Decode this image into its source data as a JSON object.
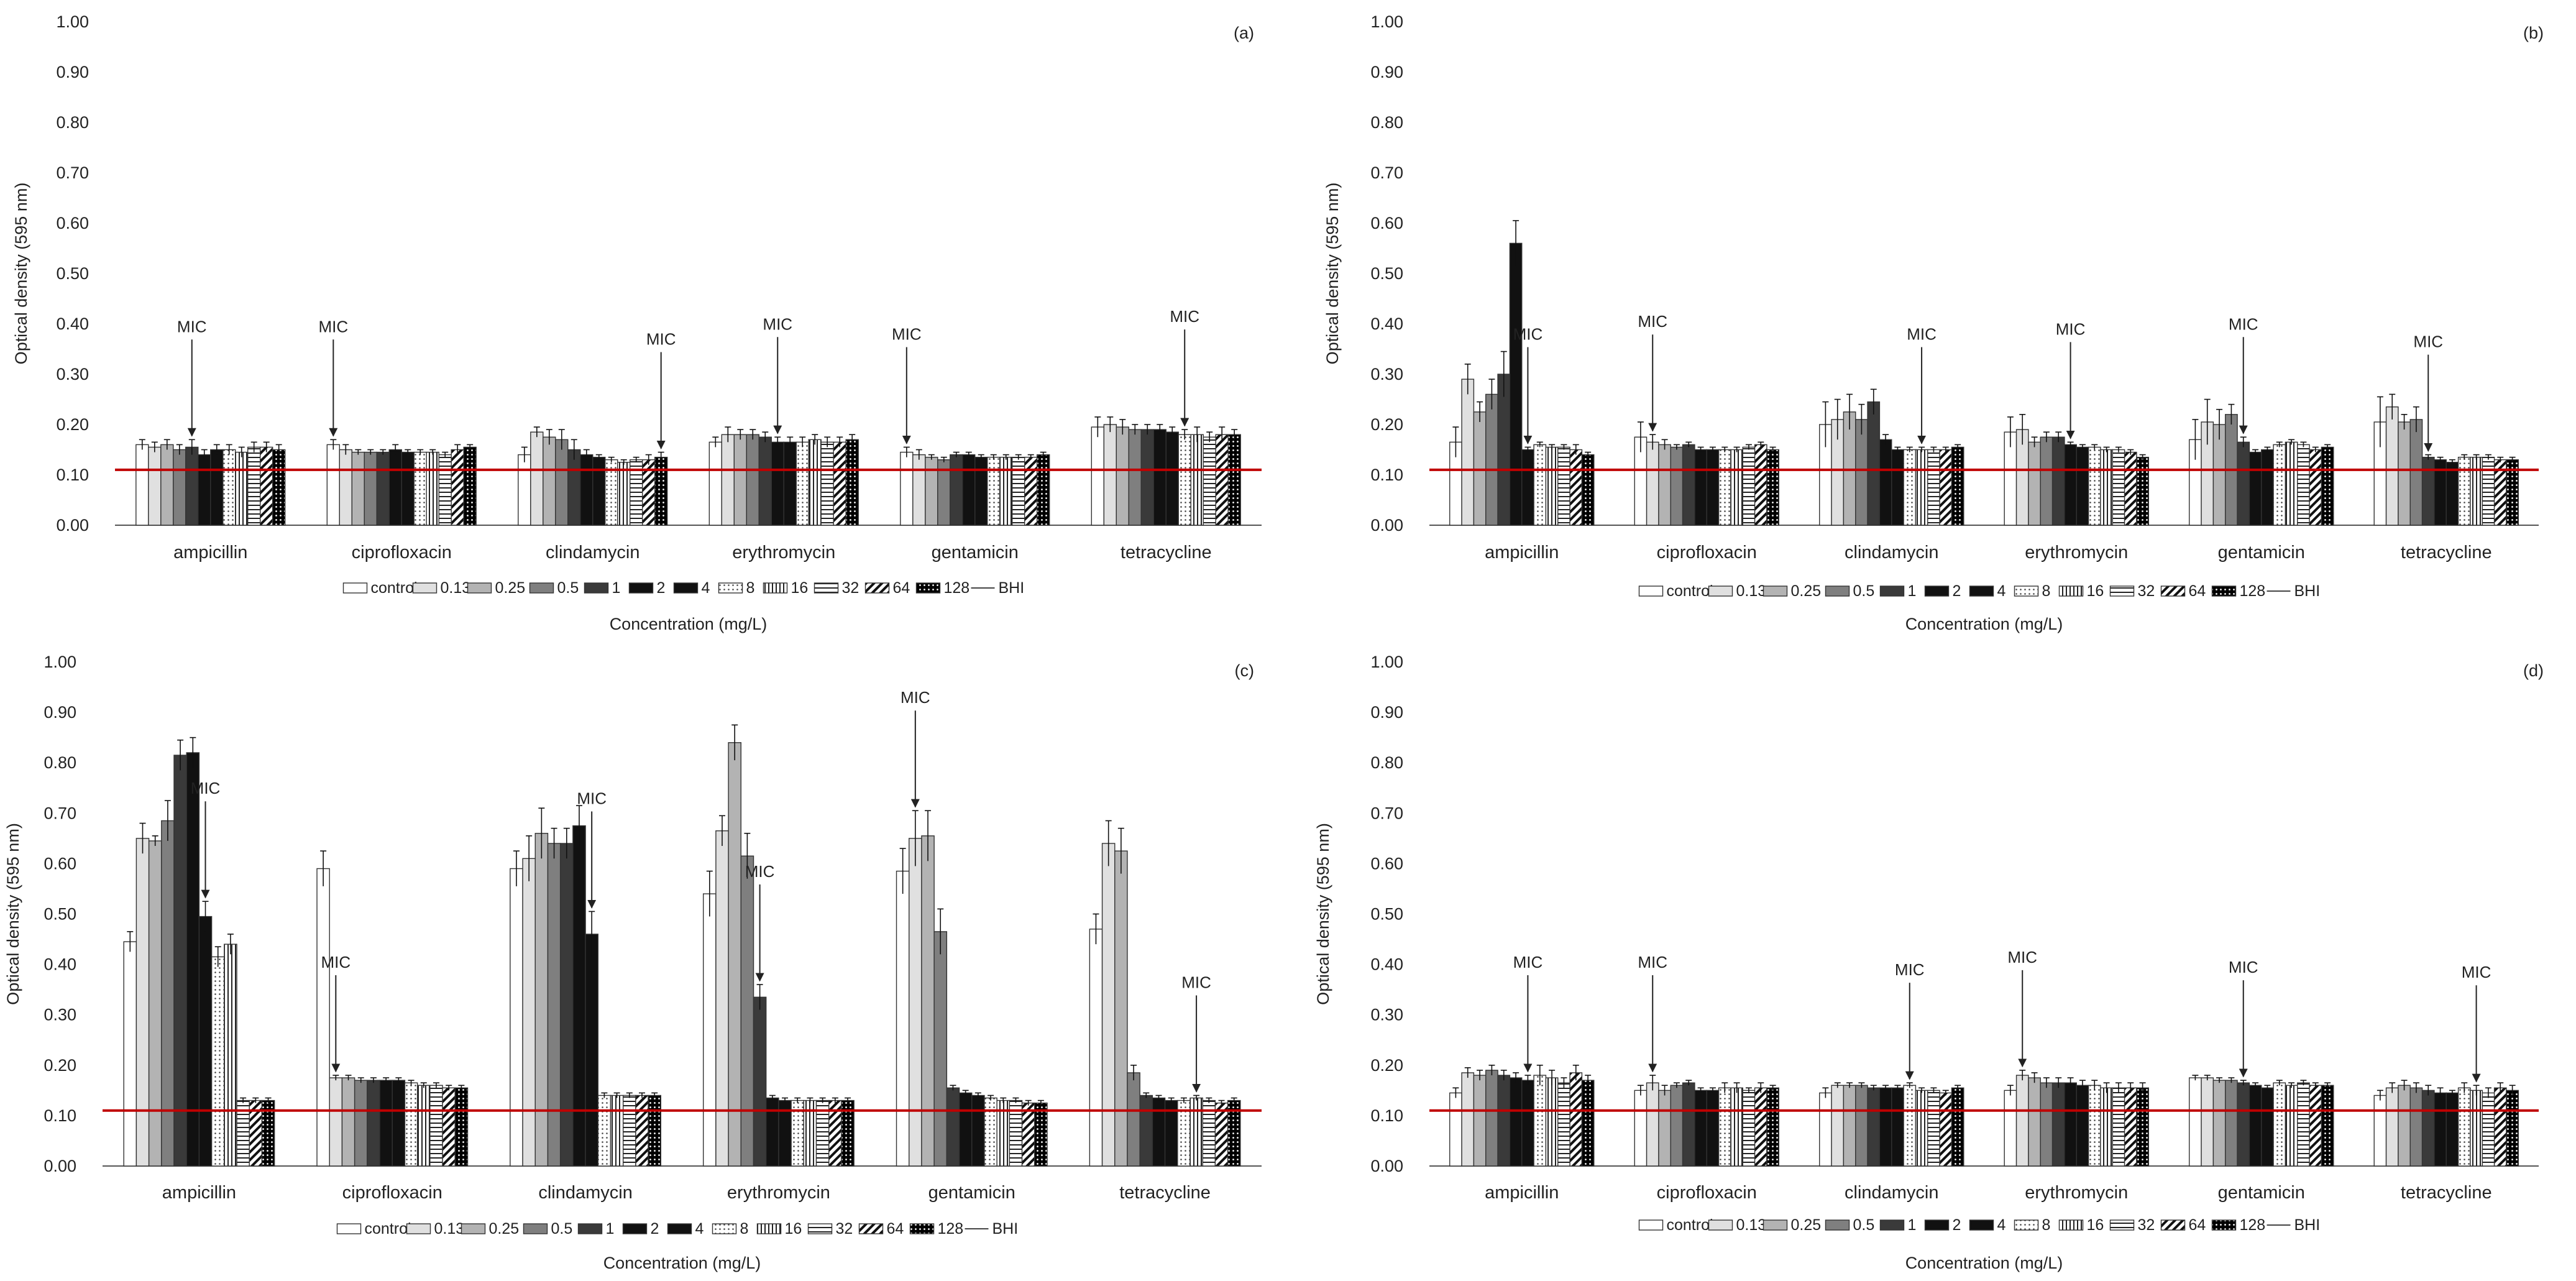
{
  "figure": {
    "ylabel": "Optical density (595 nm)",
    "xlabel": "Concentration (mg/L)",
    "mic_label": "MIC"
  },
  "legend": [
    {
      "label": "control",
      "pattern": "white"
    },
    {
      "label": "0.13",
      "pattern": "lightgray"
    },
    {
      "label": "0.25",
      "pattern": "midgray"
    },
    {
      "label": "0.5",
      "pattern": "gray"
    },
    {
      "label": "1",
      "pattern": "darkgray"
    },
    {
      "label": "2",
      "pattern": "black"
    },
    {
      "label": "4",
      "pattern": "black"
    },
    {
      "label": "8",
      "pattern": "dots"
    },
    {
      "label": "16",
      "pattern": "vlines"
    },
    {
      "label": "32",
      "pattern": "hlines"
    },
    {
      "label": "64",
      "pattern": "diag"
    },
    {
      "label": "128",
      "pattern": "blackdots"
    },
    {
      "label": "BHI",
      "pattern": "line"
    }
  ],
  "colors": {
    "bhi_line": "#c00000",
    "bar_edge": "#333333",
    "axis": "#555555"
  },
  "chart_data": [
    {
      "type": "bar",
      "panel": "(a)",
      "categories": [
        "ampicillin",
        "ciprofloxacin",
        "clindamycin",
        "erythromycin",
        "gentamicin",
        "tetracycline"
      ],
      "ylim": [
        0,
        1
      ],
      "yticks": [
        "0.00",
        "0.10",
        "0.20",
        "0.30",
        "0.40",
        "0.50",
        "0.60",
        "0.70",
        "0.80",
        "0.90",
        "1.00"
      ],
      "bhi": 0.11,
      "series_labels": [
        "control",
        "0.13",
        "0.25",
        "0.5",
        "1",
        "2",
        "4",
        "8",
        "16",
        "32",
        "64",
        "128"
      ],
      "values": [
        [
          0.16,
          0.155,
          0.16,
          0.15,
          0.155,
          0.14,
          0.15,
          0.15,
          0.145,
          0.155,
          0.155,
          0.15
        ],
        [
          0.16,
          0.15,
          0.145,
          0.145,
          0.145,
          0.15,
          0.145,
          0.145,
          0.145,
          0.14,
          0.15,
          0.155
        ],
        [
          0.14,
          0.185,
          0.175,
          0.17,
          0.15,
          0.14,
          0.135,
          0.13,
          0.125,
          0.13,
          0.13,
          0.135
        ],
        [
          0.165,
          0.18,
          0.18,
          0.18,
          0.175,
          0.165,
          0.165,
          0.165,
          0.17,
          0.165,
          0.165,
          0.17
        ],
        [
          0.145,
          0.14,
          0.135,
          0.13,
          0.14,
          0.14,
          0.135,
          0.135,
          0.135,
          0.135,
          0.135,
          0.14
        ],
        [
          0.195,
          0.2,
          0.195,
          0.19,
          0.19,
          0.19,
          0.185,
          0.18,
          0.18,
          0.175,
          0.18,
          0.18
        ]
      ],
      "errors": [
        [
          0.01,
          0.01,
          0.01,
          0.01,
          0.015,
          0.01,
          0.01,
          0.01,
          0.01,
          0.01,
          0.01,
          0.01
        ],
        [
          0.01,
          0.01,
          0.005,
          0.005,
          0.005,
          0.01,
          0.005,
          0.005,
          0.005,
          0.005,
          0.01,
          0.005
        ],
        [
          0.015,
          0.01,
          0.015,
          0.02,
          0.02,
          0.01,
          0.005,
          0.005,
          0.005,
          0.005,
          0.01,
          0.01
        ],
        [
          0.01,
          0.015,
          0.01,
          0.01,
          0.01,
          0.01,
          0.01,
          0.01,
          0.01,
          0.01,
          0.01,
          0.01
        ],
        [
          0.01,
          0.01,
          0.005,
          0.005,
          0.005,
          0.005,
          0.005,
          0.005,
          0.005,
          0.005,
          0.005,
          0.005
        ],
        [
          0.02,
          0.015,
          0.015,
          0.01,
          0.01,
          0.01,
          0.01,
          0.01,
          0.015,
          0.01,
          0.015,
          0.01
        ]
      ],
      "mic": [
        4,
        0,
        11,
        5,
        0,
        7
      ]
    },
    {
      "type": "bar",
      "panel": "(b)",
      "categories": [
        "ampicillin",
        "ciprofloxacin",
        "clindamycin",
        "erythromycin",
        "gentamicin",
        "tetracycline"
      ],
      "ylim": [
        0,
        1
      ],
      "yticks": [
        "0.00",
        "0.10",
        "0.20",
        "0.30",
        "0.40",
        "0.50",
        "0.60",
        "0.70",
        "0.80",
        "0.90",
        "1.00"
      ],
      "bhi": 0.11,
      "series_labels": [
        "control",
        "0.13",
        "0.25",
        "0.5",
        "1",
        "2",
        "4",
        "8",
        "16",
        "32",
        "64",
        "128"
      ],
      "values": [
        [
          0.165,
          0.29,
          0.225,
          0.26,
          0.3,
          0.56,
          0.15,
          0.16,
          0.155,
          0.155,
          0.15,
          0.14
        ],
        [
          0.175,
          0.165,
          0.16,
          0.155,
          0.16,
          0.15,
          0.15,
          0.15,
          0.15,
          0.155,
          0.16,
          0.15
        ],
        [
          0.2,
          0.21,
          0.225,
          0.21,
          0.245,
          0.17,
          0.15,
          0.15,
          0.15,
          0.15,
          0.15,
          0.155
        ],
        [
          0.185,
          0.19,
          0.165,
          0.175,
          0.175,
          0.16,
          0.155,
          0.155,
          0.15,
          0.15,
          0.145,
          0.135
        ],
        [
          0.17,
          0.205,
          0.2,
          0.22,
          0.165,
          0.145,
          0.15,
          0.16,
          0.165,
          0.16,
          0.15,
          0.155
        ],
        [
          0.205,
          0.235,
          0.205,
          0.21,
          0.135,
          0.13,
          0.125,
          0.135,
          0.135,
          0.135,
          0.13,
          0.13
        ]
      ],
      "errors": [
        [
          0.03,
          0.03,
          0.02,
          0.03,
          0.045,
          0.045,
          0.005,
          0.005,
          0.005,
          0.005,
          0.01,
          0.005
        ],
        [
          0.03,
          0.015,
          0.01,
          0.005,
          0.005,
          0.005,
          0.005,
          0.005,
          0.005,
          0.005,
          0.005,
          0.005
        ],
        [
          0.045,
          0.04,
          0.035,
          0.03,
          0.025,
          0.01,
          0.005,
          0.005,
          0.005,
          0.005,
          0.005,
          0.005
        ],
        [
          0.03,
          0.03,
          0.01,
          0.01,
          0.01,
          0.005,
          0.005,
          0.005,
          0.005,
          0.005,
          0.005,
          0.005
        ],
        [
          0.04,
          0.045,
          0.03,
          0.02,
          0.01,
          0.005,
          0.005,
          0.005,
          0.005,
          0.005,
          0.005,
          0.005
        ],
        [
          0.05,
          0.025,
          0.015,
          0.025,
          0.005,
          0.005,
          0.005,
          0.005,
          0.005,
          0.005,
          0.005,
          0.005
        ]
      ],
      "mic": [
        6,
        1,
        8,
        5,
        4,
        4
      ]
    },
    {
      "type": "bar",
      "panel": "(c)",
      "categories": [
        "ampicillin",
        "ciprofloxacin",
        "clindamycin",
        "erythromycin",
        "gentamicin",
        "tetracycline"
      ],
      "ylim": [
        0,
        1
      ],
      "yticks": [
        "0.00",
        "0.10",
        "0.20",
        "0.30",
        "0.40",
        "0.50",
        "0.60",
        "0.70",
        "0.80",
        "0.90",
        "1.00"
      ],
      "bhi": 0.11,
      "series_labels": [
        "control",
        "0.13",
        "0.25",
        "0.5",
        "1",
        "2",
        "4",
        "8",
        "16",
        "32",
        "64",
        "128"
      ],
      "values": [
        [
          0.445,
          0.65,
          0.645,
          0.685,
          0.815,
          0.82,
          0.495,
          0.415,
          0.44,
          0.13,
          0.13,
          0.13
        ],
        [
          0.59,
          0.175,
          0.175,
          0.17,
          0.17,
          0.17,
          0.17,
          0.165,
          0.16,
          0.16,
          0.155,
          0.155
        ],
        [
          0.59,
          0.61,
          0.66,
          0.64,
          0.64,
          0.675,
          0.46,
          0.14,
          0.14,
          0.14,
          0.14,
          0.14
        ],
        [
          0.54,
          0.665,
          0.84,
          0.615,
          0.335,
          0.135,
          0.13,
          0.13,
          0.13,
          0.13,
          0.13,
          0.13
        ],
        [
          0.585,
          0.65,
          0.655,
          0.465,
          0.155,
          0.145,
          0.14,
          0.135,
          0.13,
          0.13,
          0.125,
          0.125
        ],
        [
          0.47,
          0.64,
          0.625,
          0.185,
          0.14,
          0.135,
          0.13,
          0.13,
          0.135,
          0.13,
          0.125,
          0.13
        ]
      ],
      "errors": [
        [
          0.02,
          0.03,
          0.01,
          0.04,
          0.03,
          0.03,
          0.03,
          0.02,
          0.02,
          0.005,
          0.005,
          0.005
        ],
        [
          0.035,
          0.005,
          0.005,
          0.005,
          0.005,
          0.005,
          0.005,
          0.005,
          0.005,
          0.005,
          0.005,
          0.005
        ],
        [
          0.035,
          0.045,
          0.05,
          0.03,
          0.03,
          0.04,
          0.045,
          0.005,
          0.005,
          0.005,
          0.005,
          0.005
        ],
        [
          0.045,
          0.03,
          0.035,
          0.045,
          0.025,
          0.005,
          0.005,
          0.005,
          0.005,
          0.005,
          0.005,
          0.005
        ],
        [
          0.045,
          0.055,
          0.05,
          0.045,
          0.005,
          0.005,
          0.005,
          0.005,
          0.005,
          0.005,
          0.005,
          0.005
        ],
        [
          0.03,
          0.045,
          0.045,
          0.015,
          0.005,
          0.005,
          0.005,
          0.005,
          0.005,
          0.005,
          0.005,
          0.005
        ]
      ],
      "mic": [
        6,
        1,
        6,
        4,
        1,
        8
      ]
    },
    {
      "type": "bar",
      "panel": "(d)",
      "categories": [
        "ampicillin",
        "ciprofloxacin",
        "clindamycin",
        "erythromycin",
        "gentamicin",
        "tetracycline"
      ],
      "ylim": [
        0,
        1
      ],
      "yticks": [
        "0.00",
        "0.10",
        "0.20",
        "0.30",
        "0.40",
        "0.50",
        "0.60",
        "0.70",
        "0.80",
        "0.90",
        "1.00"
      ],
      "bhi": 0.11,
      "series_labels": [
        "control",
        "0.13",
        "0.25",
        "0.5",
        "1",
        "2",
        "4",
        "8",
        "16",
        "32",
        "64",
        "128"
      ],
      "values": [
        [
          0.145,
          0.185,
          0.18,
          0.19,
          0.18,
          0.175,
          0.17,
          0.18,
          0.175,
          0.165,
          0.185,
          0.17
        ],
        [
          0.15,
          0.165,
          0.15,
          0.16,
          0.165,
          0.15,
          0.15,
          0.155,
          0.155,
          0.15,
          0.155,
          0.155
        ],
        [
          0.145,
          0.16,
          0.16,
          0.16,
          0.155,
          0.155,
          0.155,
          0.16,
          0.15,
          0.15,
          0.145,
          0.155
        ],
        [
          0.15,
          0.18,
          0.175,
          0.165,
          0.165,
          0.165,
          0.16,
          0.16,
          0.155,
          0.155,
          0.155,
          0.155
        ],
        [
          0.175,
          0.175,
          0.17,
          0.17,
          0.165,
          0.16,
          0.155,
          0.165,
          0.16,
          0.165,
          0.16,
          0.16
        ],
        [
          0.14,
          0.155,
          0.16,
          0.155,
          0.15,
          0.145,
          0.145,
          0.155,
          0.15,
          0.145,
          0.155,
          0.15
        ]
      ],
      "errors": [
        [
          0.01,
          0.01,
          0.01,
          0.01,
          0.01,
          0.01,
          0.01,
          0.02,
          0.015,
          0.01,
          0.015,
          0.01
        ],
        [
          0.01,
          0.015,
          0.01,
          0.005,
          0.005,
          0.005,
          0.005,
          0.01,
          0.01,
          0.005,
          0.01,
          0.005
        ],
        [
          0.01,
          0.005,
          0.005,
          0.005,
          0.005,
          0.005,
          0.005,
          0.005,
          0.005,
          0.005,
          0.005,
          0.005
        ],
        [
          0.01,
          0.01,
          0.01,
          0.01,
          0.01,
          0.01,
          0.01,
          0.01,
          0.01,
          0.01,
          0.01,
          0.01
        ],
        [
          0.005,
          0.005,
          0.005,
          0.005,
          0.005,
          0.005,
          0.005,
          0.005,
          0.005,
          0.005,
          0.005,
          0.005
        ],
        [
          0.01,
          0.01,
          0.01,
          0.01,
          0.01,
          0.01,
          0.005,
          0.01,
          0.01,
          0.01,
          0.01,
          0.01
        ]
      ],
      "mic": [
        6,
        1,
        7,
        1,
        4,
        8
      ]
    }
  ]
}
